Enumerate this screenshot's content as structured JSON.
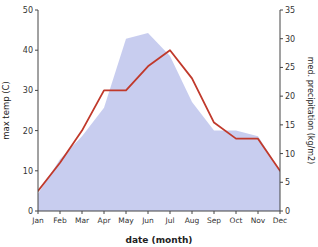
{
  "chart_data": {
    "type": "line",
    "categories": [
      "Jan",
      "Feb",
      "Mar",
      "Apr",
      "May",
      "Jun",
      "Jul",
      "Aug",
      "Sep",
      "Oct",
      "Nov",
      "Dec"
    ],
    "series": [
      {
        "type": "area",
        "axis": "y2",
        "color": "#b0b8e8",
        "values": [
          3,
          9,
          13,
          18,
          30,
          31,
          27,
          19,
          14,
          14,
          13,
          7
        ]
      },
      {
        "type": "line",
        "color": "#c0392b",
        "values": [
          5,
          12,
          20,
          30,
          30,
          36,
          40,
          33,
          22,
          18,
          18,
          10
        ]
      }
    ],
    "xlabel": "date (month)",
    "ylabel": "max temp (C)",
    "y2label": "med. precipitation (kg/m2)",
    "ylim": [
      0,
      50
    ],
    "yticks": [
      0,
      10,
      20,
      30,
      40,
      50
    ],
    "y2lim": [
      0,
      35
    ],
    "y2ticks": [
      0,
      5,
      10,
      15,
      20,
      25,
      30,
      35
    ],
    "grid": false
  }
}
